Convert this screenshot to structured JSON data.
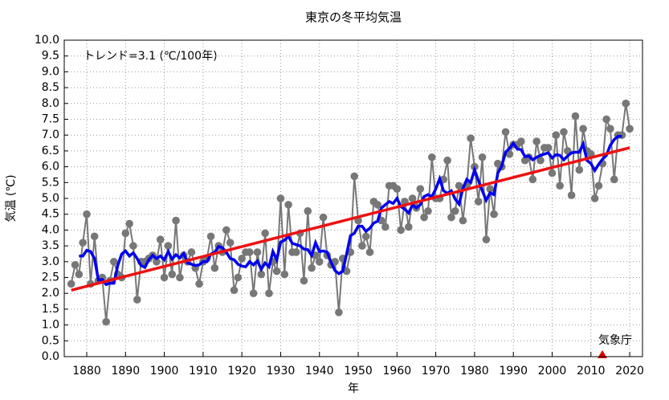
{
  "chart_data": {
    "type": "line",
    "title": "東京の冬平均気温",
    "xlabel": "年",
    "ylabel": "気温 (℃)",
    "annotations": [
      "トレンド=3.1 (℃/100年)",
      "気象庁"
    ],
    "xlim": [
      1874.2,
      2023.3
    ],
    "ylim": [
      0,
      10
    ],
    "xticks": [
      1880,
      1890,
      1900,
      1910,
      1920,
      1930,
      1940,
      1950,
      1960,
      1970,
      1980,
      1990,
      2000,
      2010,
      2020
    ],
    "yticks": [
      {
        "value": 0,
        "label": "0.0"
      },
      0.5,
      {
        "value": 1,
        "label": "1.0"
      },
      1.5,
      {
        "value": 2,
        "label": "2.0"
      },
      2.5,
      {
        "value": 3,
        "label": "3.0"
      },
      3.5,
      {
        "value": 4,
        "label": "4.0"
      },
      4.5,
      {
        "value": 5,
        "label": "5.0"
      },
      5.5,
      {
        "value": 6,
        "label": "6.0"
      },
      6.5,
      {
        "value": 7,
        "label": "7.0"
      },
      7.5,
      {
        "value": 8,
        "label": "8.0"
      },
      8.5,
      {
        "value": 9,
        "label": "9.0"
      },
      9.5,
      {
        "value": 10,
        "label": "10.0"
      }
    ],
    "grid": true,
    "series": [
      {
        "color": "#777777",
        "marker": true,
        "x": [
          1876,
          1877,
          1878,
          1879,
          1880,
          1881,
          1882,
          1883,
          1884,
          1885,
          1886,
          1887,
          1888,
          1889,
          1890,
          1891,
          1892,
          1893,
          1894,
          1895,
          1896,
          1897,
          1898,
          1899,
          1900,
          1901,
          1902,
          1903,
          1904,
          1905,
          1906,
          1907,
          1908,
          1909,
          1910,
          1911,
          1912,
          1913,
          1914,
          1915,
          1916,
          1917,
          1918,
          1919,
          1920,
          1921,
          1922,
          1923,
          1924,
          1925,
          1926,
          1927,
          1928,
          1929,
          1930,
          1931,
          1932,
          1933,
          1934,
          1935,
          1936,
          1937,
          1938,
          1939,
          1940,
          1941,
          1942,
          1943,
          1944,
          1945,
          1946,
          1947,
          1948,
          1949,
          1950,
          1951,
          1952,
          1953,
          1954,
          1955,
          1956,
          1957,
          1958,
          1959,
          1960,
          1961,
          1962,
          1963,
          1964,
          1965,
          1966,
          1967,
          1968,
          1969,
          1970,
          1971,
          1972,
          1973,
          1974,
          1975,
          1976,
          1977,
          1978,
          1979,
          1980,
          1981,
          1982,
          1983,
          1984,
          1985,
          1986,
          1987,
          1988,
          1989,
          1990,
          1991,
          1992,
          1993,
          1994,
          1995,
          1996,
          1997,
          1998,
          1999,
          2000,
          2001,
          2002,
          2003,
          2004,
          2005,
          2006,
          2007,
          2008,
          2009,
          2010,
          2011,
          2012,
          2013,
          2014,
          2015,
          2016,
          2017,
          2018,
          2019,
          2020
        ],
        "values": [
          2.3,
          2.9,
          2.6,
          3.6,
          4.5,
          2.3,
          3.8,
          2.4,
          2.5,
          1.1,
          2.4,
          3.0,
          2.6,
          2.5,
          3.9,
          4.2,
          3.5,
          1.8,
          3.0,
          3.0,
          3.1,
          3.2,
          3.0,
          3.7,
          2.5,
          3.5,
          2.6,
          4.3,
          2.5,
          3.2,
          3.0,
          3.3,
          2.8,
          2.3,
          3.0,
          3.1,
          3.8,
          2.8,
          3.5,
          3.3,
          4.0,
          3.6,
          2.1,
          2.5,
          3.1,
          3.3,
          3.3,
          2.0,
          3.3,
          2.6,
          3.9,
          2.0,
          3.0,
          2.7,
          5.0,
          2.6,
          4.8,
          3.3,
          3.3,
          3.9,
          2.4,
          4.6,
          2.8,
          3.2,
          3.0,
          4.4,
          3.2,
          2.9,
          3.0,
          1.4,
          3.1,
          2.7,
          3.3,
          5.7,
          4.3,
          3.5,
          3.8,
          3.3,
          4.9,
          4.8,
          4.3,
          4.1,
          5.4,
          5.4,
          5.3,
          4.0,
          4.9,
          4.1,
          5.0,
          4.7,
          5.3,
          4.4,
          4.6,
          6.3,
          5.0,
          5.0,
          5.6,
          6.2,
          4.4,
          4.6,
          5.4,
          4.3,
          5.4,
          6.9,
          6.0,
          4.9,
          6.3,
          3.7,
          5.3,
          4.5,
          6.1,
          6.0,
          7.1,
          6.4,
          6.7,
          6.7,
          6.8,
          6.2,
          6.3,
          5.6,
          6.8,
          6.2,
          6.6,
          6.6,
          5.8,
          7.0,
          5.4,
          7.1,
          6.5,
          5.1,
          7.6,
          5.9,
          7.2,
          6.5,
          6.4,
          5.0,
          5.4,
          6.1,
          7.5,
          7.2,
          5.6,
          7.0,
          7.0,
          8.0,
          7.2
        ]
      },
      {
        "color": "#0000ee",
        "marker": false,
        "x": [
          1878,
          1879,
          1880,
          1881,
          1882,
          1883,
          1884,
          1885,
          1886,
          1887,
          1888,
          1889,
          1890,
          1891,
          1892,
          1893,
          1894,
          1895,
          1896,
          1897,
          1898,
          1899,
          1900,
          1901,
          1902,
          1903,
          1904,
          1905,
          1906,
          1907,
          1908,
          1909,
          1910,
          1911,
          1912,
          1913,
          1914,
          1915,
          1916,
          1917,
          1918,
          1919,
          1920,
          1921,
          1922,
          1923,
          1924,
          1925,
          1926,
          1927,
          1928,
          1929,
          1930,
          1931,
          1932,
          1933,
          1934,
          1935,
          1936,
          1937,
          1938,
          1939,
          1940,
          1941,
          1942,
          1943,
          1944,
          1945,
          1946,
          1947,
          1948,
          1949,
          1950,
          1951,
          1952,
          1953,
          1954,
          1955,
          1956,
          1957,
          1958,
          1959,
          1960,
          1961,
          1962,
          1963,
          1964,
          1965,
          1966,
          1967,
          1968,
          1969,
          1970,
          1971,
          1972,
          1973,
          1974,
          1975,
          1976,
          1977,
          1978,
          1979,
          1980,
          1981,
          1982,
          1983,
          1984,
          1985,
          1986,
          1987,
          1988,
          1989,
          1990,
          1991,
          1992,
          1993,
          1994,
          1995,
          1996,
          1997,
          1998,
          1999,
          2000,
          2001,
          2002,
          2003,
          2004,
          2005,
          2006,
          2007,
          2008,
          2009,
          2010,
          2011,
          2012,
          2013,
          2014,
          2015,
          2016,
          2017,
          2018
        ],
        "values": [
          3.18,
          3.18,
          3.36,
          3.32,
          3.1,
          2.42,
          2.44,
          2.28,
          2.32,
          2.32,
          2.88,
          3.24,
          3.34,
          3.18,
          3.28,
          3.1,
          2.88,
          2.82,
          3.06,
          3.2,
          3.1,
          3.18,
          3.06,
          3.32,
          3.08,
          3.22,
          3.12,
          3.26,
          2.96,
          2.92,
          2.88,
          2.9,
          3.0,
          3.0,
          3.24,
          3.3,
          3.48,
          3.44,
          3.3,
          3.1,
          3.06,
          2.92,
          2.86,
          2.84,
          3.0,
          2.9,
          3.02,
          2.76,
          2.96,
          2.84,
          3.32,
          3.06,
          3.62,
          3.68,
          3.8,
          3.58,
          3.54,
          3.5,
          3.4,
          3.38,
          3.2,
          3.6,
          3.32,
          3.34,
          3.3,
          2.98,
          2.72,
          2.62,
          2.7,
          3.24,
          3.82,
          3.9,
          4.12,
          4.12,
          3.96,
          4.06,
          4.22,
          4.28,
          4.7,
          4.8,
          4.9,
          4.84,
          5.0,
          4.74,
          4.66,
          4.54,
          4.8,
          4.7,
          4.8,
          5.06,
          5.12,
          5.06,
          5.3,
          5.62,
          5.24,
          5.16,
          5.24,
          4.98,
          4.82,
          5.32,
          5.6,
          5.5,
          5.9,
          5.56,
          5.24,
          4.94,
          5.18,
          5.12,
          5.8,
          6.02,
          6.46,
          6.58,
          6.74,
          6.56,
          6.54,
          6.32,
          6.34,
          6.22,
          6.3,
          6.36,
          6.4,
          6.44,
          6.28,
          6.38,
          6.36,
          6.22,
          6.34,
          6.44,
          6.46,
          6.46,
          6.72,
          6.2,
          6.1,
          5.88,
          6.08,
          6.24,
          6.36,
          6.68,
          6.86,
          6.96,
          6.96
        ]
      },
      {
        "color": "#ee1111",
        "marker": false,
        "x": [
          1876,
          2020
        ],
        "values": [
          2.1,
          6.6
        ]
      }
    ]
  }
}
